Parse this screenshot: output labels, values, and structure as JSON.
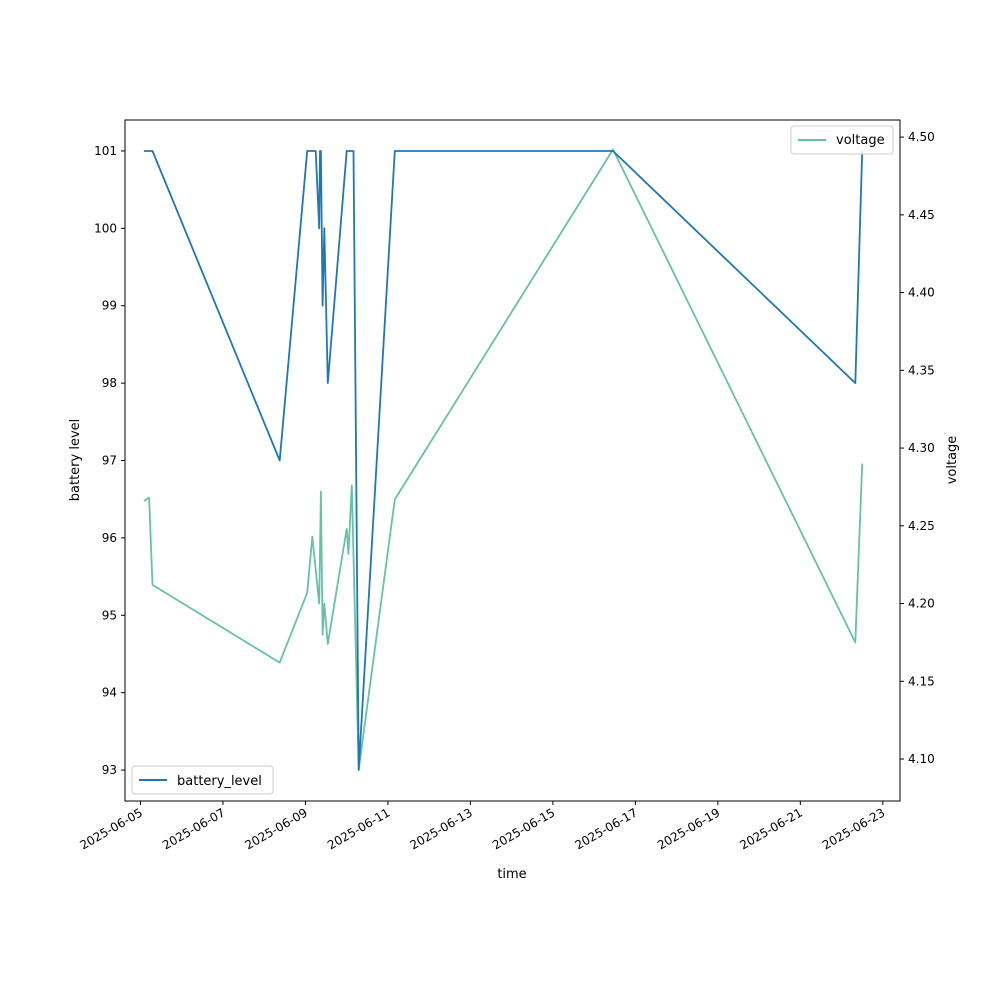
{
  "chart_data": {
    "type": "line",
    "xlabel": "time",
    "ylabel": "battery level",
    "y2label": "voltage",
    "xlim": [
      "2025-06-04 15:00",
      "2025-06-23 10:00"
    ],
    "ylim": [
      92.6,
      101.4
    ],
    "y2lim": [
      4.073,
      4.511
    ],
    "x_ticks": [
      "2025-06-05",
      "2025-06-07",
      "2025-06-09",
      "2025-06-11",
      "2025-06-13",
      "2025-06-15",
      "2025-06-17",
      "2025-06-19",
      "2025-06-21",
      "2025-06-23"
    ],
    "y_ticks": [
      "93",
      "94",
      "95",
      "96",
      "97",
      "98",
      "99",
      "100",
      "101"
    ],
    "y2_ticks": [
      "4.10",
      "4.15",
      "4.20",
      "4.25",
      "4.30",
      "4.35",
      "4.40",
      "4.45",
      "4.50"
    ],
    "grid": false,
    "series": [
      {
        "name": "battery_level",
        "axis": "left",
        "color": "#1f77b4",
        "legend_position": "lower-left",
        "x": [
          "2025-06-05 02:00",
          "2025-06-05 07:00",
          "2025-06-08 09:00",
          "2025-06-09 01:00",
          "2025-06-09 06:00",
          "2025-06-09 08:00",
          "2025-06-09 08:30",
          "2025-06-09 09:00",
          "2025-06-09 10:00",
          "2025-06-09 11:00",
          "2025-06-09 13:00",
          "2025-06-10 00:00",
          "2025-06-10 04:00",
          "2025-06-10 07:00",
          "2025-06-11 04:00",
          "2025-06-16 11:00",
          "2025-06-22 08:00",
          "2025-06-22 12:00"
        ],
        "values": [
          101,
          101,
          97,
          101,
          101,
          100,
          101,
          101,
          99,
          100,
          98,
          101,
          101,
          93,
          101,
          101,
          98,
          101
        ]
      },
      {
        "name": "voltage",
        "axis": "right",
        "color": "#66c2a5",
        "legend_position": "upper-right",
        "x": [
          "2025-06-05 02:00",
          "2025-06-05 05:00",
          "2025-06-05 07:00",
          "2025-06-08 09:00",
          "2025-06-09 01:00",
          "2025-06-09 04:00",
          "2025-06-09 08:00",
          "2025-06-09 09:00",
          "2025-06-09 10:00",
          "2025-06-09 11:00",
          "2025-06-09 13:00",
          "2025-06-10 00:00",
          "2025-06-10 01:00",
          "2025-06-10 03:00",
          "2025-06-10 07:00",
          "2025-06-11 04:00",
          "2025-06-16 11:00",
          "2025-06-22 08:00",
          "2025-06-22 12:00"
        ],
        "values": [
          4.266,
          4.268,
          4.212,
          4.162,
          4.207,
          4.243,
          4.2,
          4.272,
          4.18,
          4.2,
          4.174,
          4.248,
          4.232,
          4.276,
          4.093,
          4.267,
          4.492,
          4.175,
          4.29
        ]
      }
    ]
  }
}
